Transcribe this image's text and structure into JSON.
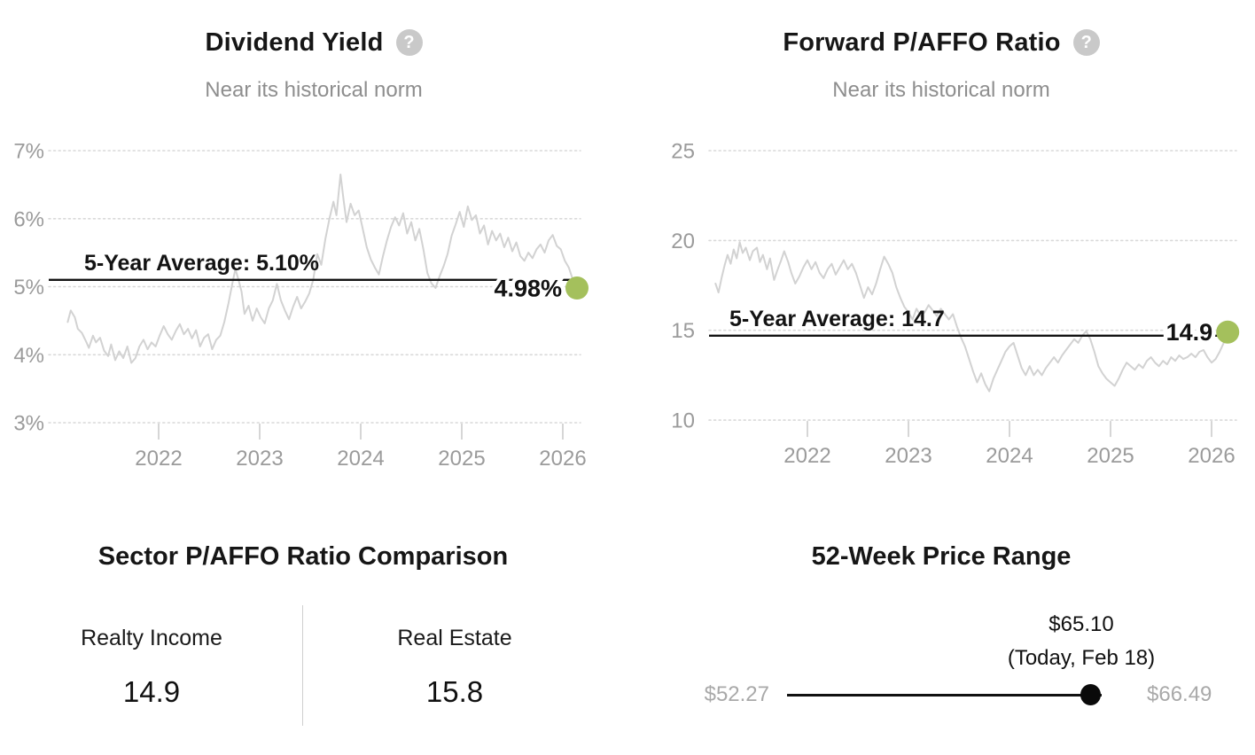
{
  "colors": {
    "title": "#161616",
    "subtitle": "#8e8e8e",
    "axis_label": "#9b9b9b",
    "gridline": "#d9d9d9",
    "series_line": "#d2d2d2",
    "average_line": "#131313",
    "current_dot_green": "#a4c05c",
    "range_dot_black": "#0a0a0a",
    "range_minmax_label": "#a9a9a9"
  },
  "charts": [
    {
      "title": "Dividend Yield",
      "help_icon_glyph": "?",
      "subtitle": "Near its historical norm",
      "average_label": "5-Year Average: 5.10%",
      "current_label": "4.98%",
      "chart_data": {
        "type": "line",
        "title": "Dividend Yield",
        "xlabel": "",
        "ylabel": "",
        "x_ticks": [
          2022,
          2023,
          2024,
          2025,
          2026
        ],
        "y_ticks": [
          "7%",
          "6%",
          "5%",
          "4%",
          "3%"
        ],
        "y_tick_values": [
          7,
          6,
          5,
          4,
          3
        ],
        "xlim": [
          2021.1,
          2026.35
        ],
        "ylim": [
          2.6,
          7.3
        ],
        "grid": "horizontal-dotted",
        "legend": "none",
        "average": 5.1,
        "current": 4.98,
        "points": [
          [
            2021.1,
            4.48
          ],
          [
            2021.13,
            4.65
          ],
          [
            2021.17,
            4.55
          ],
          [
            2021.2,
            4.38
          ],
          [
            2021.24,
            4.32
          ],
          [
            2021.28,
            4.2
          ],
          [
            2021.31,
            4.1
          ],
          [
            2021.35,
            4.28
          ],
          [
            2021.38,
            4.18
          ],
          [
            2021.42,
            4.25
          ],
          [
            2021.46,
            4.06
          ],
          [
            2021.5,
            3.98
          ],
          [
            2021.53,
            4.15
          ],
          [
            2021.57,
            3.92
          ],
          [
            2021.61,
            4.05
          ],
          [
            2021.65,
            3.95
          ],
          [
            2021.69,
            4.12
          ],
          [
            2021.73,
            3.88
          ],
          [
            2021.77,
            3.95
          ],
          [
            2021.81,
            4.12
          ],
          [
            2021.85,
            4.22
          ],
          [
            2021.89,
            4.08
          ],
          [
            2021.93,
            4.18
          ],
          [
            2021.97,
            4.12
          ],
          [
            2022.01,
            4.28
          ],
          [
            2022.05,
            4.42
          ],
          [
            2022.09,
            4.3
          ],
          [
            2022.13,
            4.22
          ],
          [
            2022.17,
            4.35
          ],
          [
            2022.21,
            4.45
          ],
          [
            2022.25,
            4.3
          ],
          [
            2022.29,
            4.38
          ],
          [
            2022.33,
            4.24
          ],
          [
            2022.37,
            4.36
          ],
          [
            2022.41,
            4.12
          ],
          [
            2022.45,
            4.25
          ],
          [
            2022.49,
            4.3
          ],
          [
            2022.53,
            4.08
          ],
          [
            2022.57,
            4.22
          ],
          [
            2022.61,
            4.28
          ],
          [
            2022.65,
            4.48
          ],
          [
            2022.69,
            4.75
          ],
          [
            2022.73,
            5.05
          ],
          [
            2022.76,
            5.26
          ],
          [
            2022.79,
            5.1
          ],
          [
            2022.82,
            4.93
          ],
          [
            2022.85,
            4.6
          ],
          [
            2022.89,
            4.72
          ],
          [
            2022.93,
            4.5
          ],
          [
            2022.97,
            4.68
          ],
          [
            2023.01,
            4.55
          ],
          [
            2023.05,
            4.46
          ],
          [
            2023.09,
            4.68
          ],
          [
            2023.13,
            4.8
          ],
          [
            2023.17,
            5.04
          ],
          [
            2023.21,
            4.8
          ],
          [
            2023.25,
            4.65
          ],
          [
            2023.29,
            4.52
          ],
          [
            2023.33,
            4.7
          ],
          [
            2023.37,
            4.85
          ],
          [
            2023.41,
            4.68
          ],
          [
            2023.45,
            4.78
          ],
          [
            2023.49,
            4.9
          ],
          [
            2023.53,
            5.1
          ],
          [
            2023.57,
            5.48
          ],
          [
            2023.61,
            5.32
          ],
          [
            2023.65,
            5.7
          ],
          [
            2023.69,
            6.0
          ],
          [
            2023.73,
            6.25
          ],
          [
            2023.76,
            6.05
          ],
          [
            2023.8,
            6.65
          ],
          [
            2023.83,
            6.28
          ],
          [
            2023.86,
            5.95
          ],
          [
            2023.9,
            6.22
          ],
          [
            2023.94,
            6.05
          ],
          [
            2023.98,
            6.12
          ],
          [
            2024.02,
            5.85
          ],
          [
            2024.06,
            5.58
          ],
          [
            2024.1,
            5.4
          ],
          [
            2024.14,
            5.28
          ],
          [
            2024.18,
            5.18
          ],
          [
            2024.22,
            5.45
          ],
          [
            2024.26,
            5.68
          ],
          [
            2024.3,
            5.88
          ],
          [
            2024.34,
            6.02
          ],
          [
            2024.38,
            5.9
          ],
          [
            2024.42,
            6.08
          ],
          [
            2024.46,
            5.78
          ],
          [
            2024.5,
            5.95
          ],
          [
            2024.54,
            5.68
          ],
          [
            2024.58,
            5.85
          ],
          [
            2024.62,
            5.55
          ],
          [
            2024.66,
            5.2
          ],
          [
            2024.7,
            5.05
          ],
          [
            2024.74,
            4.98
          ],
          [
            2024.78,
            5.15
          ],
          [
            2024.82,
            5.3
          ],
          [
            2024.86,
            5.48
          ],
          [
            2024.9,
            5.75
          ],
          [
            2024.94,
            5.92
          ],
          [
            2024.98,
            6.1
          ],
          [
            2025.02,
            5.88
          ],
          [
            2025.06,
            6.18
          ],
          [
            2025.1,
            5.98
          ],
          [
            2025.14,
            6.05
          ],
          [
            2025.18,
            5.78
          ],
          [
            2025.22,
            5.9
          ],
          [
            2025.26,
            5.62
          ],
          [
            2025.3,
            5.82
          ],
          [
            2025.34,
            5.68
          ],
          [
            2025.38,
            5.78
          ],
          [
            2025.42,
            5.58
          ],
          [
            2025.46,
            5.72
          ],
          [
            2025.5,
            5.52
          ],
          [
            2025.54,
            5.65
          ],
          [
            2025.58,
            5.45
          ],
          [
            2025.62,
            5.38
          ],
          [
            2025.66,
            5.5
          ],
          [
            2025.7,
            5.42
          ],
          [
            2025.74,
            5.55
          ],
          [
            2025.78,
            5.62
          ],
          [
            2025.82,
            5.5
          ],
          [
            2025.86,
            5.68
          ],
          [
            2025.9,
            5.76
          ],
          [
            2025.94,
            5.6
          ],
          [
            2025.98,
            5.55
          ],
          [
            2026.02,
            5.38
          ],
          [
            2026.06,
            5.28
          ],
          [
            2026.1,
            5.1
          ],
          [
            2026.14,
            4.98
          ]
        ]
      }
    },
    {
      "title": "Forward P/AFFO Ratio",
      "help_icon_glyph": "?",
      "subtitle": "Near its historical norm",
      "average_label": "5-Year Average: 14.7",
      "current_label": "14.9",
      "chart_data": {
        "type": "line",
        "title": "Forward P/AFFO Ratio",
        "xlabel": "",
        "ylabel": "",
        "x_ticks": [
          2022,
          2023,
          2024,
          2025,
          2026
        ],
        "y_ticks": [
          "25",
          "20",
          "15",
          "10"
        ],
        "y_tick_values": [
          25,
          20,
          15,
          10
        ],
        "xlim": [
          2021.09,
          2026.35
        ],
        "ylim": [
          9.8,
          25.5
        ],
        "grid": "horizontal-dotted",
        "legend": "none",
        "average": 14.7,
        "current": 14.9,
        "points": [
          [
            2021.09,
            17.6
          ],
          [
            2021.12,
            17.1
          ],
          [
            2021.15,
            17.9
          ],
          [
            2021.18,
            18.6
          ],
          [
            2021.21,
            19.2
          ],
          [
            2021.24,
            18.7
          ],
          [
            2021.27,
            19.5
          ],
          [
            2021.3,
            19.0
          ],
          [
            2021.33,
            19.9
          ],
          [
            2021.36,
            19.3
          ],
          [
            2021.39,
            19.6
          ],
          [
            2021.43,
            18.9
          ],
          [
            2021.46,
            19.4
          ],
          [
            2021.5,
            19.6
          ],
          [
            2021.53,
            18.8
          ],
          [
            2021.56,
            19.2
          ],
          [
            2021.6,
            18.4
          ],
          [
            2021.63,
            19.0
          ],
          [
            2021.67,
            17.8
          ],
          [
            2021.7,
            18.3
          ],
          [
            2021.74,
            18.9
          ],
          [
            2021.77,
            19.4
          ],
          [
            2021.81,
            18.8
          ],
          [
            2021.84,
            18.2
          ],
          [
            2021.88,
            17.6
          ],
          [
            2021.92,
            18.0
          ],
          [
            2021.96,
            18.5
          ],
          [
            2022.0,
            18.9
          ],
          [
            2022.04,
            18.4
          ],
          [
            2022.08,
            18.8
          ],
          [
            2022.12,
            18.2
          ],
          [
            2022.16,
            17.9
          ],
          [
            2022.2,
            18.4
          ],
          [
            2022.24,
            18.7
          ],
          [
            2022.28,
            18.1
          ],
          [
            2022.32,
            18.5
          ],
          [
            2022.36,
            18.9
          ],
          [
            2022.4,
            18.4
          ],
          [
            2022.44,
            18.7
          ],
          [
            2022.48,
            18.2
          ],
          [
            2022.52,
            17.5
          ],
          [
            2022.56,
            16.8
          ],
          [
            2022.6,
            17.4
          ],
          [
            2022.64,
            17.0
          ],
          [
            2022.68,
            17.6
          ],
          [
            2022.72,
            18.4
          ],
          [
            2022.76,
            19.1
          ],
          [
            2022.8,
            18.7
          ],
          [
            2022.84,
            18.2
          ],
          [
            2022.88,
            17.4
          ],
          [
            2022.92,
            16.8
          ],
          [
            2022.96,
            16.3
          ],
          [
            2023.0,
            16.0
          ],
          [
            2023.04,
            15.6
          ],
          [
            2023.08,
            16.2
          ],
          [
            2023.12,
            15.8
          ],
          [
            2023.16,
            16.0
          ],
          [
            2023.2,
            16.4
          ],
          [
            2023.24,
            16.1
          ],
          [
            2023.28,
            15.8
          ],
          [
            2023.32,
            16.2
          ],
          [
            2023.36,
            15.9
          ],
          [
            2023.4,
            15.6
          ],
          [
            2023.44,
            15.9
          ],
          [
            2023.48,
            15.2
          ],
          [
            2023.52,
            14.6
          ],
          [
            2023.56,
            14.1
          ],
          [
            2023.6,
            13.4
          ],
          [
            2023.64,
            12.7
          ],
          [
            2023.68,
            12.1
          ],
          [
            2023.72,
            12.6
          ],
          [
            2023.76,
            12.0
          ],
          [
            2023.8,
            11.6
          ],
          [
            2023.84,
            12.3
          ],
          [
            2023.88,
            12.8
          ],
          [
            2023.92,
            13.3
          ],
          [
            2023.96,
            13.8
          ],
          [
            2024.0,
            14.1
          ],
          [
            2024.04,
            14.3
          ],
          [
            2024.08,
            13.6
          ],
          [
            2024.12,
            12.9
          ],
          [
            2024.16,
            12.5
          ],
          [
            2024.2,
            13.0
          ],
          [
            2024.24,
            12.5
          ],
          [
            2024.28,
            12.8
          ],
          [
            2024.32,
            12.5
          ],
          [
            2024.36,
            12.9
          ],
          [
            2024.4,
            13.2
          ],
          [
            2024.44,
            13.5
          ],
          [
            2024.48,
            13.2
          ],
          [
            2024.52,
            13.6
          ],
          [
            2024.56,
            13.9
          ],
          [
            2024.6,
            14.2
          ],
          [
            2024.64,
            14.5
          ],
          [
            2024.68,
            14.3
          ],
          [
            2024.72,
            14.7
          ],
          [
            2024.76,
            14.95
          ],
          [
            2024.8,
            14.5
          ],
          [
            2024.84,
            13.8
          ],
          [
            2024.88,
            13.0
          ],
          [
            2024.92,
            12.6
          ],
          [
            2024.96,
            12.3
          ],
          [
            2025.0,
            12.1
          ],
          [
            2025.04,
            11.9
          ],
          [
            2025.08,
            12.3
          ],
          [
            2025.12,
            12.8
          ],
          [
            2025.16,
            13.2
          ],
          [
            2025.2,
            13.0
          ],
          [
            2025.24,
            12.8
          ],
          [
            2025.28,
            13.1
          ],
          [
            2025.32,
            12.9
          ],
          [
            2025.36,
            13.3
          ],
          [
            2025.4,
            13.5
          ],
          [
            2025.44,
            13.2
          ],
          [
            2025.48,
            13.0
          ],
          [
            2025.52,
            13.3
          ],
          [
            2025.56,
            13.1
          ],
          [
            2025.6,
            13.5
          ],
          [
            2025.64,
            13.3
          ],
          [
            2025.68,
            13.6
          ],
          [
            2025.72,
            13.4
          ],
          [
            2025.76,
            13.5
          ],
          [
            2025.8,
            13.7
          ],
          [
            2025.84,
            13.5
          ],
          [
            2025.88,
            13.8
          ],
          [
            2025.92,
            13.9
          ],
          [
            2025.96,
            13.5
          ],
          [
            2026.0,
            13.2
          ],
          [
            2026.04,
            13.4
          ],
          [
            2026.08,
            13.8
          ],
          [
            2026.12,
            14.3
          ],
          [
            2026.16,
            14.9
          ]
        ]
      }
    }
  ],
  "comparison": {
    "title": "Sector P/AFFO Ratio Comparison",
    "columns": [
      {
        "label": "Realty Income",
        "value": "14.9"
      },
      {
        "label": "Real Estate",
        "value": "15.8"
      }
    ]
  },
  "price_range": {
    "title": "52-Week Price Range",
    "current": "$65.10",
    "current_sub": "(Today, Feb 18)",
    "low": "$52.27",
    "high": "$66.49",
    "low_value": 52.27,
    "high_value": 66.49,
    "current_value": 65.1
  }
}
